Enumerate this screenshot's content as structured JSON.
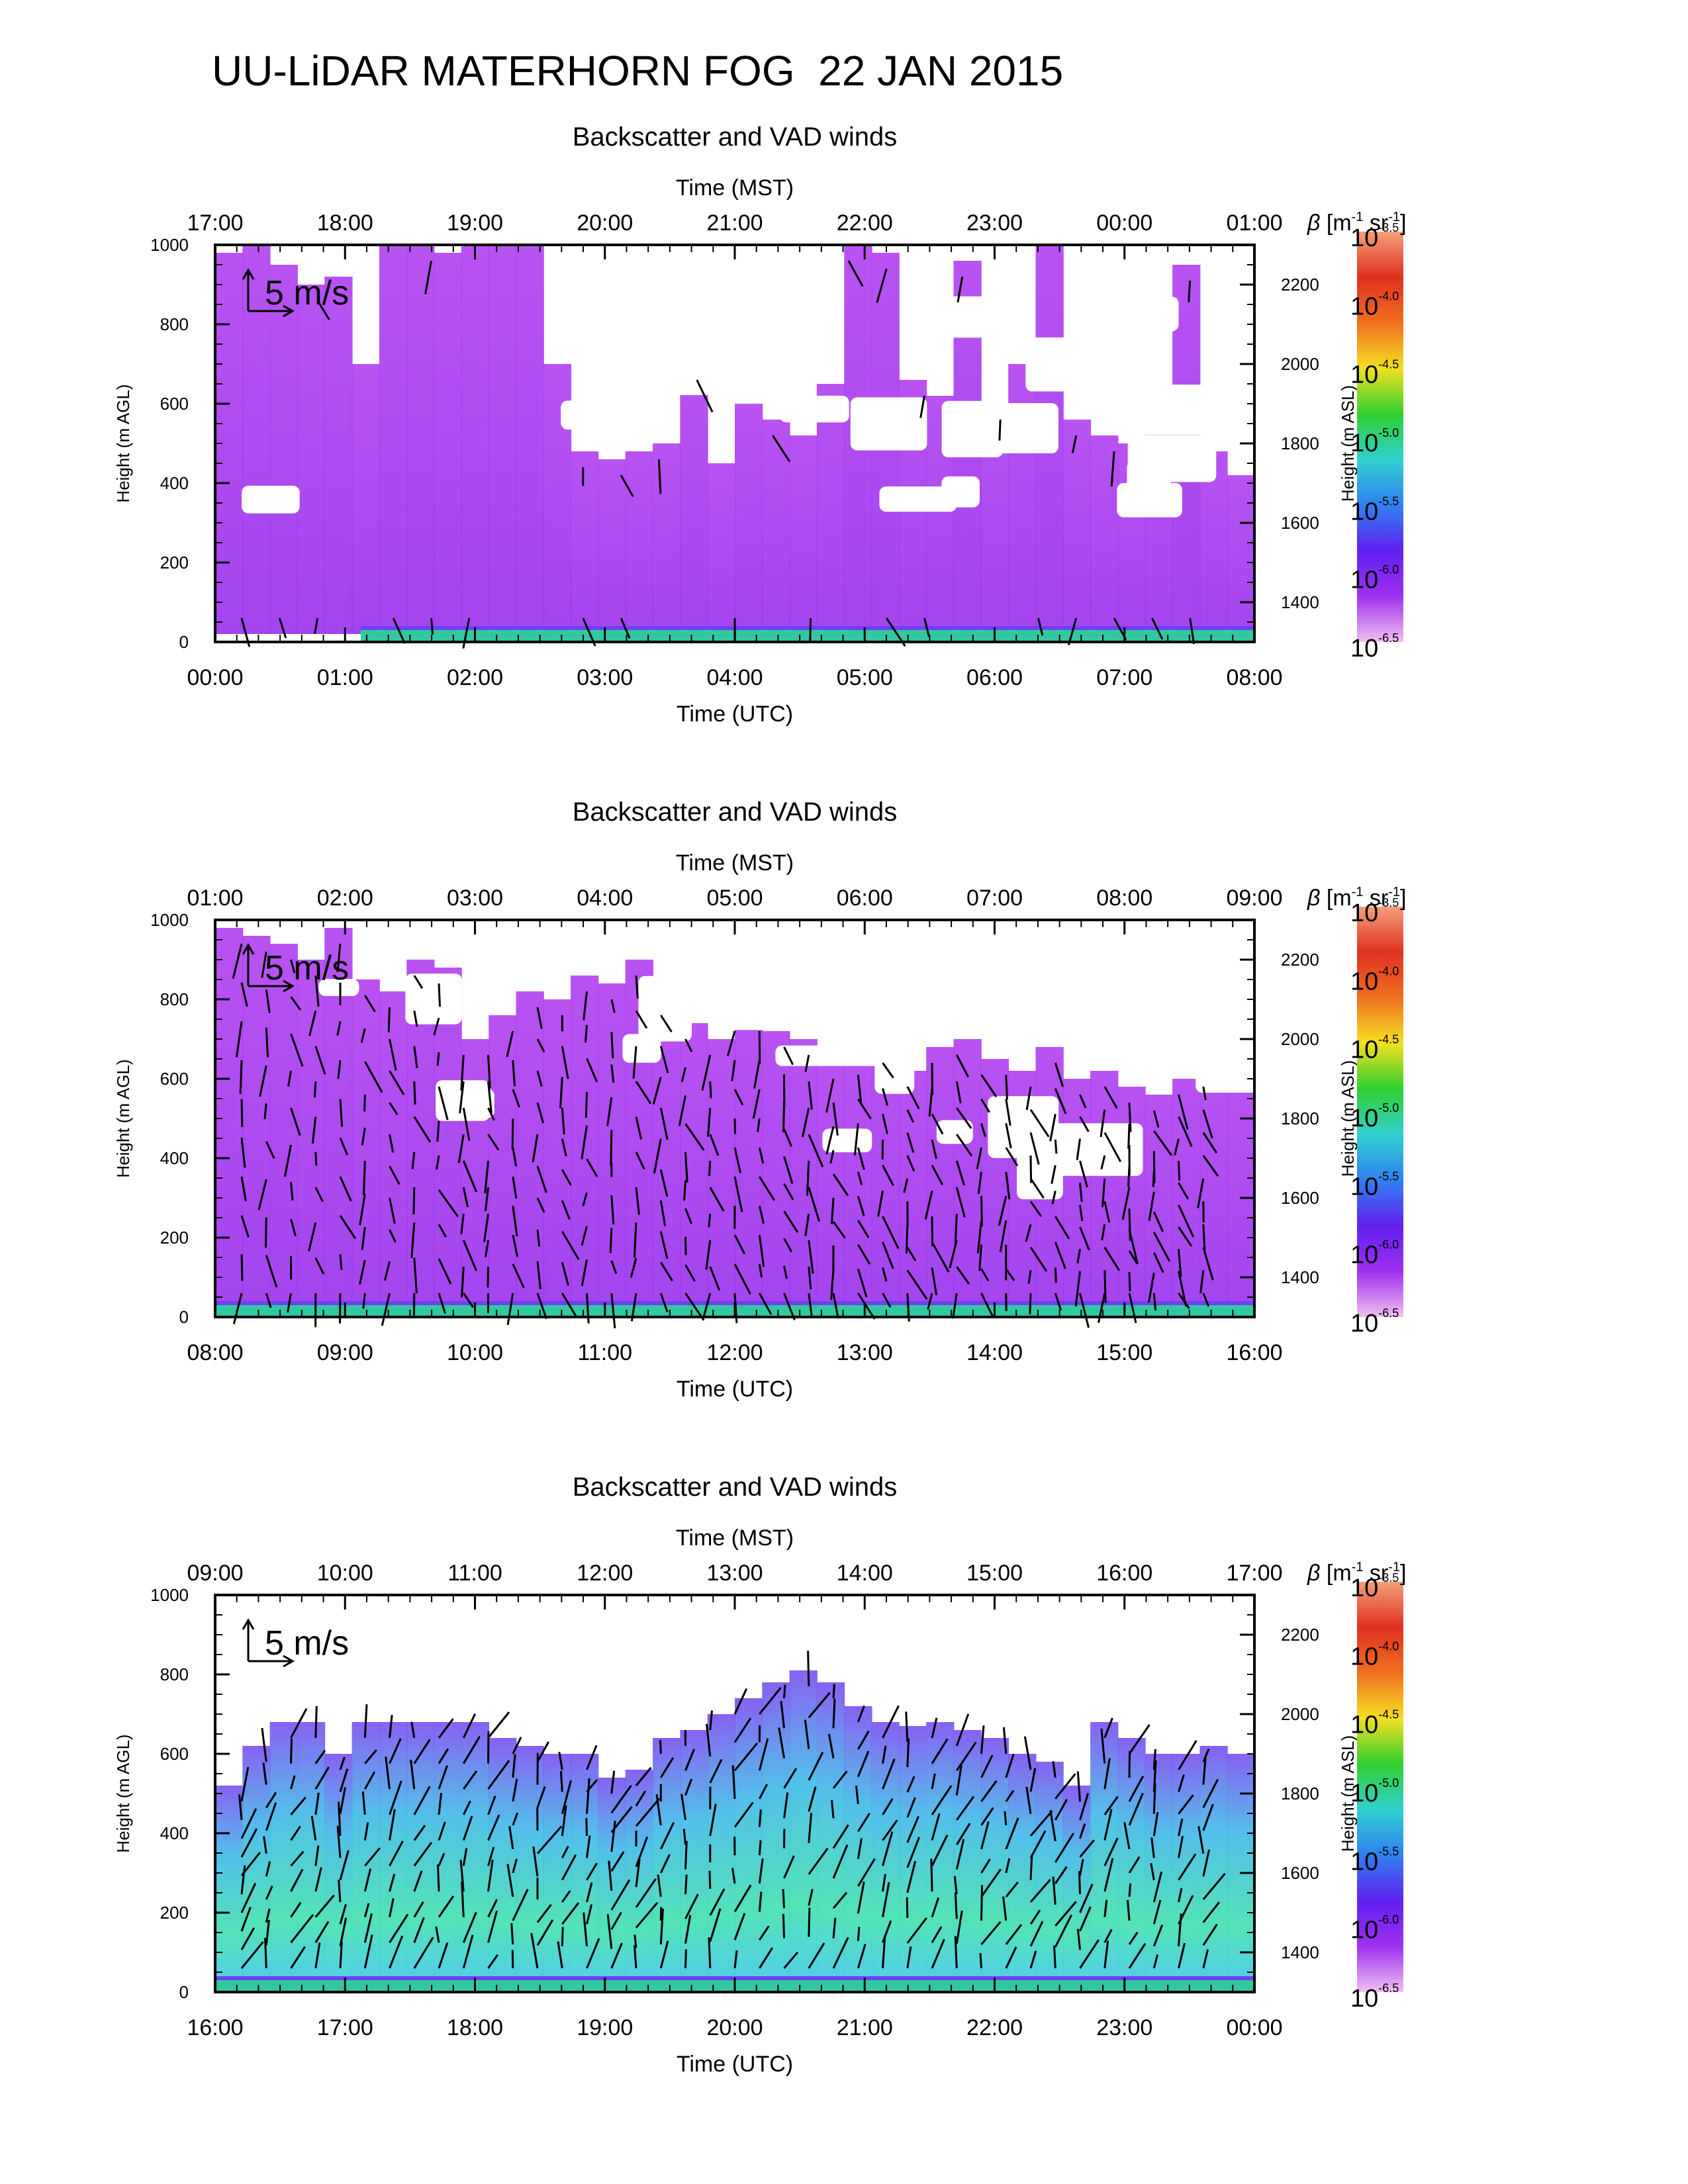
{
  "page_title": "UU-LiDAR MATERHORN FOG  22 JAN 2015",
  "colorbar": {
    "label_prefix": "β [m",
    "label_sup1": "-1",
    "label_mid": " sr",
    "label_sup2": "-1",
    "label_suffix": "]",
    "base": "10",
    "exponents": [
      "-3.5",
      "-4.0",
      "-4.5",
      "-5.0",
      "-5.5",
      "-6.0",
      "-6.5"
    ],
    "colors_top_to_bottom": [
      "#f4a07a",
      "#e03020",
      "#f07020",
      "#f4e020",
      "#30d030",
      "#30d0d0",
      "#3080f0",
      "#6020f0",
      "#a030f0",
      "#f0c0f0"
    ]
  },
  "chart_data": [
    {
      "type": "heatmap",
      "title": "Backscatter and VAD winds",
      "top_axis_title": "Time (MST)",
      "top_ticks": [
        "17:00",
        "18:00",
        "19:00",
        "20:00",
        "21:00",
        "22:00",
        "23:00",
        "00:00",
        "01:00"
      ],
      "bottom_axis_title": "Time (UTC)",
      "bottom_ticks": [
        "00:00",
        "01:00",
        "02:00",
        "03:00",
        "04:00",
        "05:00",
        "06:00",
        "07:00",
        "08:00"
      ],
      "ylabel_left": "Height (m AGL)",
      "ylabel_right": "Height (m ASL)",
      "ylim_agl": [
        0,
        1000
      ],
      "yticks_agl": [
        "0",
        "200",
        "400",
        "600",
        "800",
        "1000"
      ],
      "ylim_asl": [
        1300,
        2300
      ],
      "yticks_asl": [
        "1400",
        "1600",
        "1800",
        "2000",
        "2200"
      ],
      "wind_scale_label": "5 m/s",
      "coverage_top_agl": [
        980,
        1000,
        950,
        900,
        920,
        700,
        1000,
        1000,
        980,
        1000,
        1000,
        1000,
        700,
        480,
        460,
        480,
        500,
        700,
        450,
        600,
        560,
        520,
        650,
        1000,
        980,
        660,
        620,
        960,
        600,
        700,
        1000,
        560,
        520,
        500,
        560,
        950,
        480,
        420
      ],
      "coverage_dominant_log_beta": -6.4,
      "fog_layer_top_agl": 40
    },
    {
      "type": "heatmap",
      "title": "Backscatter and VAD winds",
      "top_axis_title": "Time (MST)",
      "top_ticks": [
        "01:00",
        "02:00",
        "03:00",
        "04:00",
        "05:00",
        "06:00",
        "07:00",
        "08:00",
        "09:00"
      ],
      "bottom_axis_title": "Time (UTC)",
      "bottom_ticks": [
        "08:00",
        "09:00",
        "10:00",
        "11:00",
        "12:00",
        "13:00",
        "14:00",
        "15:00",
        "16:00"
      ],
      "ylabel_left": "Height (m AGL)",
      "ylabel_right": "Height (m ASL)",
      "ylim_agl": [
        0,
        1000
      ],
      "yticks_agl": [
        "0",
        "200",
        "400",
        "600",
        "800",
        "1000"
      ],
      "ylim_asl": [
        1300,
        2300
      ],
      "yticks_asl": [
        "1400",
        "1600",
        "1800",
        "2000",
        "2200"
      ],
      "wind_scale_label": "5 m/s",
      "coverage_top_agl": [
        980,
        960,
        940,
        900,
        980,
        850,
        820,
        900,
        880,
        700,
        760,
        820,
        800,
        860,
        840,
        900,
        800,
        740,
        700,
        760,
        720,
        700,
        640,
        650,
        680,
        620,
        680,
        700,
        650,
        620,
        680,
        600,
        620,
        580,
        560,
        600,
        620,
        600
      ],
      "coverage_dominant_log_beta": -6.3,
      "fog_layer_top_agl": 40
    },
    {
      "type": "heatmap",
      "title": "Backscatter and VAD winds",
      "top_axis_title": "Time (MST)",
      "top_ticks": [
        "09:00",
        "10:00",
        "11:00",
        "12:00",
        "13:00",
        "14:00",
        "15:00",
        "16:00",
        "17:00"
      ],
      "bottom_axis_title": "Time (UTC)",
      "bottom_ticks": [
        "16:00",
        "17:00",
        "18:00",
        "19:00",
        "20:00",
        "21:00",
        "22:00",
        "23:00",
        "00:00"
      ],
      "ylabel_left": "Height (m AGL)",
      "ylabel_right": "Height (m ASL)",
      "ylim_agl": [
        0,
        1000
      ],
      "yticks_agl": [
        "0",
        "200",
        "400",
        "600",
        "800",
        "1000"
      ],
      "ylim_asl": [
        1300,
        2300
      ],
      "yticks_asl": [
        "1400",
        "1600",
        "1800",
        "2000",
        "2200"
      ],
      "wind_scale_label": "5 m/s",
      "coverage_top_agl": [
        520,
        620,
        680,
        680,
        600,
        680,
        680,
        680,
        680,
        680,
        640,
        620,
        600,
        600,
        540,
        560,
        640,
        660,
        700,
        740,
        780,
        810,
        780,
        720,
        680,
        670,
        680,
        660,
        640,
        600,
        580,
        520,
        680,
        640,
        600,
        600,
        620,
        600
      ],
      "coverage_dominant_log_beta": -5.8,
      "fog_layer_top_agl": 40
    }
  ]
}
